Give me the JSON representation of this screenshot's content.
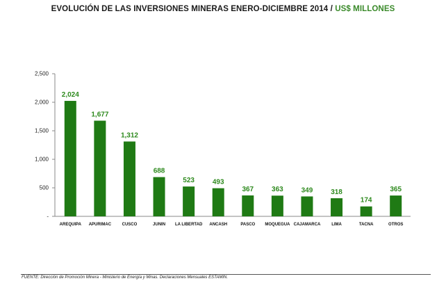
{
  "title": "EVOLUCIÓN DE LAS INVERSIONES MINERAS ENERO-DICIEMBRE 2014",
  "title_separator": "/",
  "title_unit": "US$ MILLONES",
  "source": "FUENTE: Dirección de Promoción Minera - Ministerio de Energía y Minas. Declaraciones Mensuales ESTAMIN.",
  "colors": {
    "bar": "#1f7a14",
    "label": "#2e8a1e",
    "title_unit": "#3a8a2a"
  },
  "chart_data": {
    "type": "bar",
    "title": "EVOLUCIÓN DE LAS INVERSIONES MINERAS ENERO-DICIEMBRE 2014 / US$ MILLONES",
    "xlabel": "",
    "ylabel": "",
    "categories": [
      "AREQUIPA",
      "APURIMAC",
      "CUSCO",
      "JUNIN",
      "LA LIBERTAD",
      "ANCASH",
      "PASCO",
      "MOQUEGUA",
      "CAJAMARCA",
      "LIMA",
      "TACNA",
      "OTROS"
    ],
    "values": [
      2024,
      1677,
      1312,
      688,
      523,
      493,
      367,
      363,
      349,
      318,
      174,
      365
    ],
    "value_labels": [
      "2,024",
      "1,677",
      "1,312",
      "688",
      "523",
      "493",
      "367",
      "363",
      "349",
      "318",
      "174",
      "365"
    ],
    "ylim": [
      0,
      2500
    ],
    "yticks": [
      0,
      500,
      1000,
      1500,
      2000,
      2500
    ],
    "ytick_labels": [
      "-",
      "500",
      "1,000",
      "1,500",
      "2,000",
      "2,500"
    ],
    "grid": false,
    "legend": "none"
  }
}
